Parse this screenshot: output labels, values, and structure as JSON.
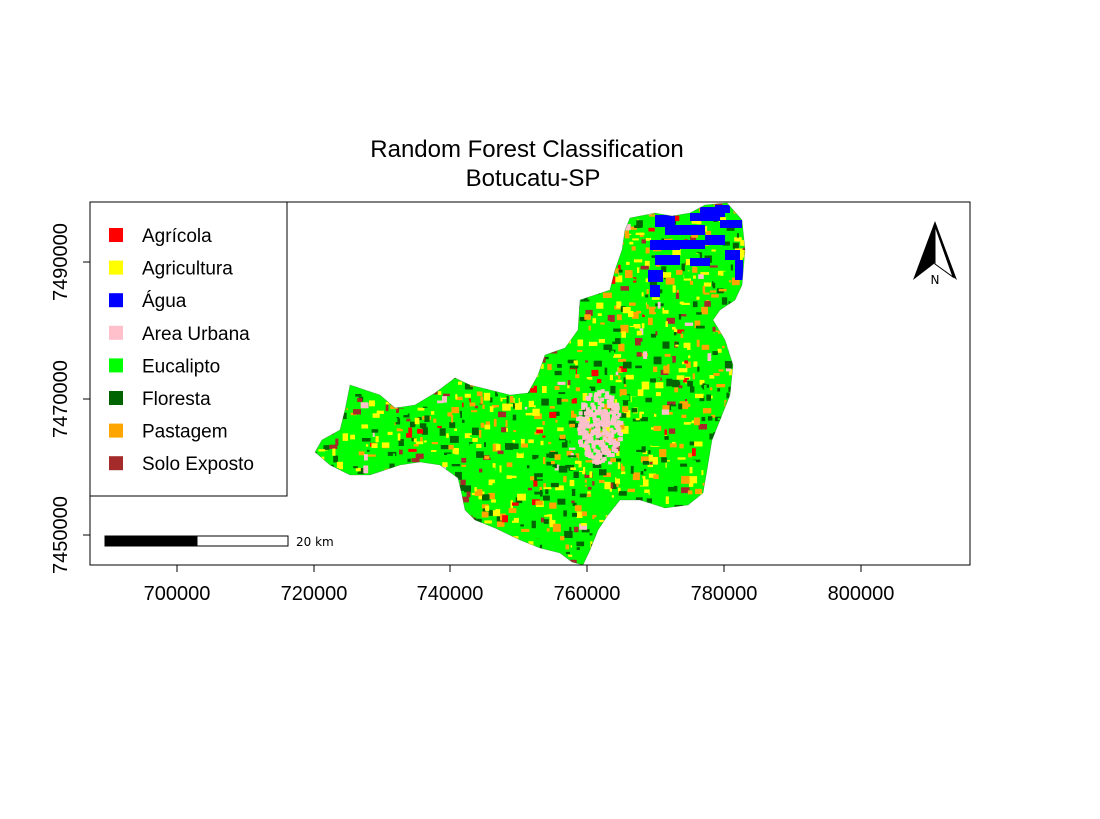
{
  "title": {
    "line1": "Random Forest Classification",
    "line2": "Botucatu-SP"
  },
  "axes": {
    "x_ticks": [
      "700000",
      "720000",
      "740000",
      "760000",
      "780000",
      "800000"
    ],
    "y_ticks": [
      "7450000",
      "7470000",
      "7490000"
    ]
  },
  "legend": {
    "placement": "top-left",
    "items": [
      {
        "label": "Agrícola",
        "color": "#FF0000"
      },
      {
        "label": "Agricultura",
        "color": "#FFFF00"
      },
      {
        "label": "Água",
        "color": "#0000FF"
      },
      {
        "label": "Area Urbana",
        "color": "#FFC0CB"
      },
      {
        "label": "Eucalipto",
        "color": "#00FF00"
      },
      {
        "label": "Floresta",
        "color": "#006400"
      },
      {
        "label": "Pastagem",
        "color": "#FFA500"
      },
      {
        "label": "Solo Exposto",
        "color": "#A52A2A"
      }
    ]
  },
  "scalebar": {
    "label": "20 km"
  },
  "north_arrow": {
    "label": "N",
    "icon": "north-arrow-icon"
  }
}
